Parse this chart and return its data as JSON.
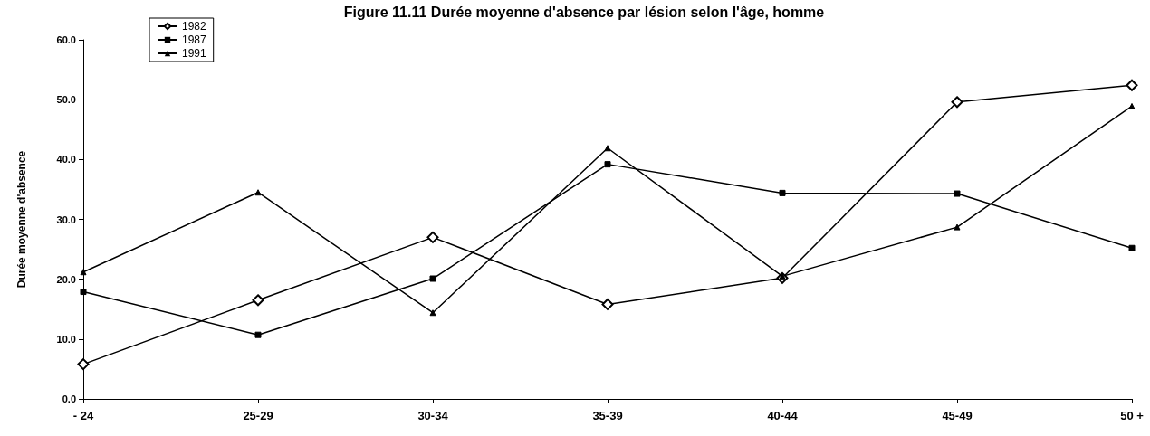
{
  "chart_data": {
    "type": "line",
    "title": "Figure 11.11 Durée moyenne d'absence par lésion selon l'âge, homme",
    "ylabel": "Durée moyenne d'absence",
    "categories": [
      "- 24",
      "25-29",
      "30-34",
      "35-39",
      "40-44",
      "45-49",
      "50 +"
    ],
    "series": [
      {
        "name": "1982",
        "color": "#000000",
        "marker": "diamond",
        "values": [
          5.8,
          16.5,
          27.0,
          15.8,
          20.2,
          49.6,
          52.4
        ]
      },
      {
        "name": "1987",
        "color": "#000000",
        "marker": "square",
        "values": [
          17.9,
          10.7,
          20.1,
          39.2,
          34.4,
          34.3,
          25.2
        ]
      },
      {
        "name": "1991",
        "color": "#000000",
        "marker": "triangle",
        "values": [
          21.2,
          34.5,
          14.4,
          41.9,
          20.5,
          28.7,
          48.9
        ]
      }
    ],
    "ylim": [
      0,
      60
    ],
    "yticks": [
      {
        "value": 0,
        "label": "0.0"
      },
      {
        "value": 10,
        "label": "10.0"
      },
      {
        "value": 20,
        "label": "20.0"
      },
      {
        "value": 30,
        "label": "30.0"
      },
      {
        "value": 40,
        "label": "40.0"
      },
      {
        "value": 50,
        "label": "50.0"
      },
      {
        "value": 60,
        "label": "60.0"
      }
    ],
    "grid": false,
    "legend": "top left",
    "line_style": "solid"
  }
}
